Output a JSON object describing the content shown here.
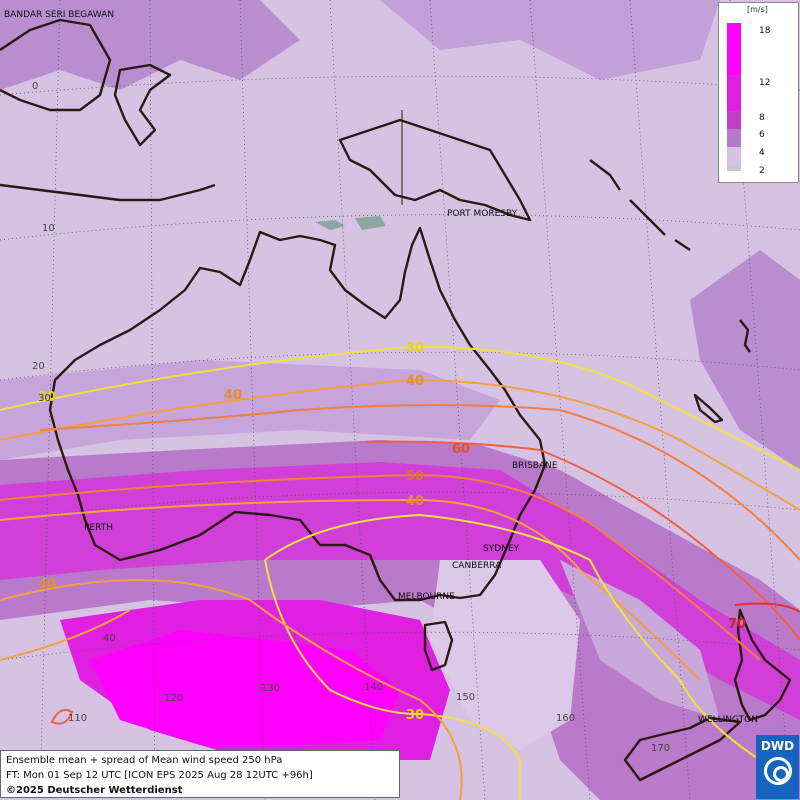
{
  "legend": {
    "unit": "[m/s]",
    "ticks": [
      "18",
      "12",
      "8",
      "6",
      "4",
      "2"
    ],
    "colors": [
      "#ff00ff",
      "#e020e0",
      "#c040c8",
      "#b27ac8",
      "#d6c3e3",
      "#c8c8c8"
    ]
  },
  "cities": {
    "bandar": "BANDAR SERI BEGAWAN",
    "port_moresby": "PORT MORESBY",
    "brisbane": "BRISBANE",
    "perth": "PERTH",
    "sydney": "SYDNEY",
    "canberra": "CANBERRA",
    "melbourne": "MELBOURNE",
    "wellington": "WELLINGTON"
  },
  "grid_labels": {
    "lat0": "0",
    "lat10": "10",
    "lat20": "20",
    "lat30": "30",
    "lat40": "40",
    "lon110": "110",
    "lon120": "120",
    "lon130": "130",
    "lon140": "140",
    "lon150": "150",
    "lon160": "160",
    "lon170": "170"
  },
  "contour_labels": {
    "c30_a": "30",
    "c30_b": "30",
    "c30_c": "30",
    "c40_a": "40",
    "c40_b": "40",
    "c40_c": "40",
    "c50": "50",
    "c60": "60",
    "c70": "70"
  },
  "contour_colors": {
    "c30": "#f0e040",
    "c40": "#f4a040",
    "c50": "#f08040",
    "c60": "#f06040",
    "c70": "#e83030"
  },
  "info": {
    "line1": "Ensemble mean + spread of Mean wind speed 250 hPa",
    "line2": "FT: Mon 01 Sep 12 UTC [ICON EPS 2025 Aug 28 12UTC +96h]",
    "line3": "©2025 Deutscher Wetterdienst"
  },
  "logo": {
    "text": "DWD"
  }
}
